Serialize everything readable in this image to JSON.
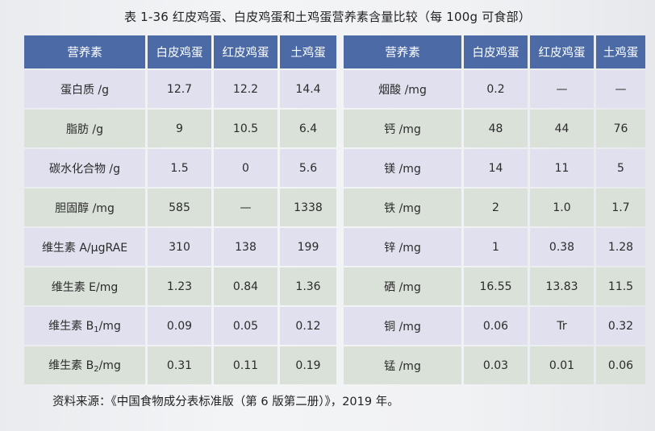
{
  "caption": "表 1-36   红皮鸡蛋、白皮鸡蛋和土鸡蛋营养素含量比较（每 100g 可食部）",
  "headers": [
    "营养素",
    "白皮鸡蛋",
    "红皮鸡蛋",
    "土鸡蛋"
  ],
  "left_rows": [
    {
      "name": "蛋白质 /g",
      "white": "12.7",
      "red": "12.2",
      "native": "14.4"
    },
    {
      "name": "脂肪 /g",
      "white": "9",
      "red": "10.5",
      "native": "6.4"
    },
    {
      "name": "碳水化合物 /g",
      "white": "1.5",
      "red": "0",
      "native": "5.6"
    },
    {
      "name": "胆固醇 /mg",
      "white": "585",
      "red": "—",
      "native": "1338"
    },
    {
      "name": "维生素 A/μgRAE",
      "white": "310",
      "red": "138",
      "native": "199"
    },
    {
      "name": "维生素 E/mg",
      "white": "1.23",
      "red": "0.84",
      "native": "1.36"
    },
    {
      "name_main": "维生素 B",
      "name_sub": "1",
      "name_unit": "/mg",
      "white": "0.09",
      "red": "0.05",
      "native": "0.12"
    },
    {
      "name_main": "维生素 B",
      "name_sub": "2",
      "name_unit": "/mg",
      "white": "0.31",
      "red": "0.11",
      "native": "0.19"
    }
  ],
  "right_rows": [
    {
      "name": "烟酸 /mg",
      "white": "0.2",
      "red": "—",
      "native": "—"
    },
    {
      "name": "钙 /mg",
      "white": "48",
      "red": "44",
      "native": "76"
    },
    {
      "name": "镁 /mg",
      "white": "14",
      "red": "11",
      "native": "5"
    },
    {
      "name": "铁 /mg",
      "white": "2",
      "red": "1.0",
      "native": "1.7"
    },
    {
      "name": "锌 /mg",
      "white": "1",
      "red": "0.38",
      "native": "1.28"
    },
    {
      "name": "硒 /mg",
      "white": "16.55",
      "red": "13.83",
      "native": "11.5"
    },
    {
      "name": "铜 /mg",
      "white": "0.06",
      "red": "Tr",
      "native": "0.32"
    },
    {
      "name": "锰 /mg",
      "white": "0.03",
      "red": "0.01",
      "native": "0.06"
    }
  ],
  "footnote": "资料来源：《中国食物成分表标准版（第 6 版第二册）》，2019 年。"
}
